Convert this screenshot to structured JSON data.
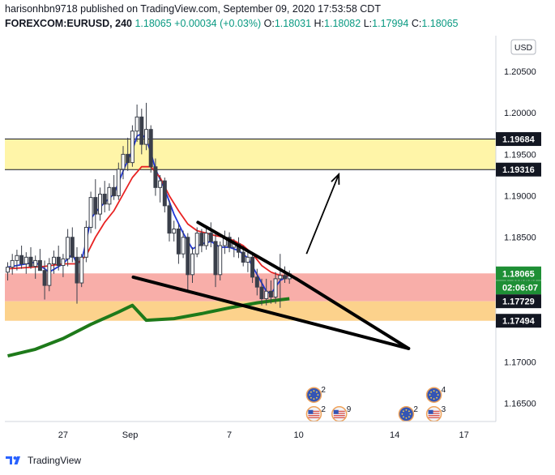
{
  "header": {
    "line1": "harisonhbn9718 published on TradingView.com, September 09, 2020 17:53:58 CDT",
    "symbol": "FOREXCOM:EURUSD, 240",
    "last": "1.18065",
    "change": "+0.00034 (+0.03%)",
    "o_label": "O:",
    "o_value": "1.18031",
    "h_label": "H:",
    "h_value": "1.18082",
    "l_label": "L:",
    "l_value": "1.17994",
    "c_label": "C:",
    "c_value": "1.18065"
  },
  "footer": {
    "brand": "TradingView"
  },
  "colors": {
    "up": "#26a69a",
    "down": "#ef5350",
    "candle": "#3a3f4a",
    "ema_fast": "#2036d9",
    "ema_mid": "#e82222",
    "ema_slow": "#1e7a1a",
    "zone_yellow": "#fff5a8",
    "zone_pink": "#f8aea9",
    "zone_orange": "#fcd28c",
    "accent_green": "#1e8f35",
    "label_dark": "#131722"
  },
  "chart_data": {
    "type": "candlestick",
    "currency": "USD",
    "x_ticks": [
      "27",
      "Sep",
      "7",
      "10",
      "14",
      "17"
    ],
    "y_ticks": [
      "1.20500",
      "1.20000",
      "1.19500",
      "1.19000",
      "1.18500",
      "1.18000",
      "1.17500",
      "1.17000",
      "1.16500"
    ],
    "ylim": [
      1.1628,
      1.2093
    ],
    "price_labels": [
      {
        "text": "1.19684",
        "value": 1.19684,
        "style": "dark"
      },
      {
        "text": "1.19316",
        "value": 1.19316,
        "style": "dark"
      },
      {
        "text": "1.18065",
        "value": 1.18065,
        "style": "green"
      },
      {
        "text": "02:06:07",
        "value": 1.17895,
        "style": "green"
      },
      {
        "text": "1.17729",
        "value": 1.17729,
        "style": "dark"
      },
      {
        "text": "1.17494",
        "value": 1.17494,
        "style": "dark"
      }
    ],
    "zones": [
      {
        "name": "resistance",
        "top": 1.19684,
        "bottom": 1.19316,
        "color": "#fff5a8"
      },
      {
        "name": "support-pink",
        "top": 1.18065,
        "bottom": 1.17729,
        "color": "#f8aea9"
      },
      {
        "name": "support-orange",
        "top": 1.17729,
        "bottom": 1.17494,
        "color": "#fcd28c"
      }
    ],
    "candles": [
      [
        1.1808,
        1.182,
        1.1798,
        1.1814
      ],
      [
        1.1814,
        1.183,
        1.1805,
        1.1822
      ],
      [
        1.1822,
        1.1835,
        1.181,
        1.1828
      ],
      [
        1.1828,
        1.184,
        1.1812,
        1.1818
      ],
      [
        1.1818,
        1.1832,
        1.1806,
        1.1826
      ],
      [
        1.1826,
        1.1838,
        1.1812,
        1.1815
      ],
      [
        1.1815,
        1.1828,
        1.18,
        1.1822
      ],
      [
        1.1822,
        1.1836,
        1.1812,
        1.181
      ],
      [
        1.181,
        1.1822,
        1.1775,
        1.1792
      ],
      [
        1.1792,
        1.1825,
        1.1785,
        1.1818
      ],
      [
        1.1818,
        1.1834,
        1.1806,
        1.1826
      ],
      [
        1.1826,
        1.184,
        1.181,
        1.1816
      ],
      [
        1.1816,
        1.183,
        1.1802,
        1.1824
      ],
      [
        1.1824,
        1.186,
        1.1815,
        1.185
      ],
      [
        1.185,
        1.1862,
        1.182,
        1.1826
      ],
      [
        1.1826,
        1.1838,
        1.177,
        1.1795
      ],
      [
        1.1795,
        1.183,
        1.179,
        1.1826
      ],
      [
        1.1826,
        1.187,
        1.182,
        1.1862
      ],
      [
        1.1862,
        1.1905,
        1.1855,
        1.1898
      ],
      [
        1.1898,
        1.192,
        1.186,
        1.1878
      ],
      [
        1.1878,
        1.191,
        1.187,
        1.1902
      ],
      [
        1.1902,
        1.1918,
        1.188,
        1.189
      ],
      [
        1.189,
        1.1915,
        1.1882,
        1.191
      ],
      [
        1.191,
        1.1925,
        1.1895,
        1.19
      ],
      [
        1.19,
        1.194,
        1.1895,
        1.1932
      ],
      [
        1.1932,
        1.196,
        1.192,
        1.195
      ],
      [
        1.195,
        1.197,
        1.193,
        1.194
      ],
      [
        1.194,
        1.1985,
        1.1935,
        1.1978
      ],
      [
        1.1978,
        1.201,
        1.1965,
        1.1995
      ],
      [
        1.1995,
        1.2005,
        1.195,
        1.1962
      ],
      [
        1.1962,
        1.2012,
        1.1955,
        1.198
      ],
      [
        1.198,
        1.1985,
        1.1928,
        1.1935
      ],
      [
        1.1935,
        1.1945,
        1.19,
        1.191
      ],
      [
        1.191,
        1.1925,
        1.1892,
        1.1918
      ],
      [
        1.1918,
        1.1922,
        1.188,
        1.1888
      ],
      [
        1.1888,
        1.1895,
        1.1845,
        1.1855
      ],
      [
        1.1855,
        1.187,
        1.1845,
        1.186
      ],
      [
        1.186,
        1.1866,
        1.1818,
        1.183
      ],
      [
        1.183,
        1.1858,
        1.1825,
        1.185
      ],
      [
        1.185,
        1.1855,
        1.1785,
        1.1805
      ],
      [
        1.1805,
        1.1838,
        1.1795,
        1.183
      ],
      [
        1.183,
        1.1862,
        1.1826,
        1.1855
      ],
      [
        1.1855,
        1.186,
        1.1832,
        1.184
      ],
      [
        1.184,
        1.1862,
        1.1835,
        1.1855
      ],
      [
        1.1855,
        1.1868,
        1.1838,
        1.1845
      ],
      [
        1.1845,
        1.1855,
        1.179,
        1.1805
      ],
      [
        1.1805,
        1.1845,
        1.1798,
        1.184
      ],
      [
        1.184,
        1.1858,
        1.183,
        1.185
      ],
      [
        1.185,
        1.1856,
        1.1832,
        1.1838
      ],
      [
        1.1838,
        1.1848,
        1.1826,
        1.1842
      ],
      [
        1.1842,
        1.185,
        1.1825,
        1.1832
      ],
      [
        1.1832,
        1.184,
        1.1815,
        1.182
      ],
      [
        1.182,
        1.1832,
        1.1808,
        1.1826
      ],
      [
        1.1826,
        1.183,
        1.1795,
        1.1802
      ],
      [
        1.1802,
        1.1812,
        1.178,
        1.179
      ],
      [
        1.179,
        1.18,
        1.1768,
        1.1776
      ],
      [
        1.1776,
        1.18,
        1.1768,
        1.1785
      ],
      [
        1.1785,
        1.1798,
        1.177,
        1.1778
      ],
      [
        1.1778,
        1.1808,
        1.177,
        1.18
      ],
      [
        1.18,
        1.183,
        1.1765,
        1.1804
      ],
      [
        1.1804,
        1.1815,
        1.1795,
        1.18
      ],
      [
        1.18,
        1.181,
        1.1794,
        1.1806
      ]
    ],
    "series": [
      {
        "type": "line",
        "values": [
          [
            0,
            1.1814
          ],
          [
            6,
            1.182
          ],
          [
            9,
            1.1808
          ],
          [
            12,
            1.1818
          ],
          [
            14,
            1.183
          ],
          [
            15,
            1.1818
          ],
          [
            16,
            1.1822
          ],
          [
            17,
            1.1845
          ],
          [
            18,
            1.1872
          ],
          [
            19,
            1.188
          ],
          [
            21,
            1.1892
          ],
          [
            23,
            1.1902
          ],
          [
            25,
            1.193
          ],
          [
            27,
            1.1955
          ],
          [
            28,
            1.1972
          ],
          [
            29,
            1.1975
          ],
          [
            30,
            1.1968
          ],
          [
            31,
            1.1952
          ],
          [
            32,
            1.1932
          ],
          [
            34,
            1.1908
          ],
          [
            36,
            1.1878
          ],
          [
            38,
            1.1855
          ],
          [
            40,
            1.1836
          ],
          [
            42,
            1.1842
          ],
          [
            44,
            1.1845
          ],
          [
            46,
            1.1838
          ],
          [
            48,
            1.1838
          ],
          [
            50,
            1.1834
          ],
          [
            52,
            1.1825
          ],
          [
            54,
            1.1805
          ],
          [
            55,
            1.1795
          ],
          [
            56,
            1.1785
          ],
          [
            57,
            1.1782
          ],
          [
            58,
            1.179
          ],
          [
            59,
            1.1798
          ],
          [
            61,
            1.1804
          ]
        ]
      },
      {
        "type": "line",
        "values": [
          [
            0,
            1.1812
          ],
          [
            8,
            1.1815
          ],
          [
            12,
            1.1818
          ],
          [
            15,
            1.1818
          ],
          [
            17,
            1.1828
          ],
          [
            19,
            1.185
          ],
          [
            21,
            1.1868
          ],
          [
            23,
            1.1882
          ],
          [
            25,
            1.1902
          ],
          [
            27,
            1.1922
          ],
          [
            29,
            1.1935
          ],
          [
            31,
            1.1935
          ],
          [
            33,
            1.1922
          ],
          [
            35,
            1.19
          ],
          [
            37,
            1.1882
          ],
          [
            39,
            1.1866
          ],
          [
            41,
            1.1858
          ],
          [
            43,
            1.1855
          ],
          [
            45,
            1.1852
          ],
          [
            47,
            1.185
          ],
          [
            49,
            1.1846
          ],
          [
            51,
            1.184
          ],
          [
            53,
            1.183
          ],
          [
            55,
            1.1816
          ],
          [
            57,
            1.1808
          ],
          [
            59,
            1.1804
          ],
          [
            61,
            1.1803
          ]
        ]
      },
      {
        "type": "line",
        "values": [
          [
            0,
            1.1707
          ],
          [
            6,
            1.1715
          ],
          [
            12,
            1.1728
          ],
          [
            18,
            1.1745
          ],
          [
            24,
            1.176
          ],
          [
            27,
            1.1768
          ],
          [
            30,
            1.175
          ],
          [
            36,
            1.1752
          ],
          [
            42,
            1.1758
          ],
          [
            48,
            1.1765
          ],
          [
            54,
            1.1771
          ],
          [
            58,
            1.1774
          ],
          [
            61,
            1.1776
          ]
        ]
      }
    ],
    "annotations": [
      {
        "type": "trendline",
        "from": [
          41.2,
          1.1868
        ],
        "to": [
          62.5,
          1.18
        ]
      },
      {
        "type": "trendline",
        "from": [
          62.5,
          1.18
        ],
        "to": [
          86.8,
          1.1716
        ]
      },
      {
        "type": "trendline",
        "from": [
          27.2,
          1.1802
        ],
        "to": [
          86.8,
          1.1716
        ]
      },
      {
        "type": "arrow",
        "from": [
          64.7,
          1.183
        ],
        "to": [
          71.7,
          1.1926
        ]
      }
    ],
    "events": [
      {
        "label": "2",
        "x": 66.3,
        "value": 1.166,
        "flag": "eu"
      },
      {
        "label": "2",
        "x": 66.3,
        "value": 1.1637,
        "flag": "us"
      },
      {
        "label": "9",
        "x": 71.8,
        "value": 1.1637,
        "flag": "us"
      },
      {
        "label": "2",
        "x": 86.3,
        "value": 1.1637,
        "flag": "eu"
      },
      {
        "label": "4",
        "x": 92.3,
        "value": 1.166,
        "flag": "eu"
      },
      {
        "label": "3",
        "x": 92.3,
        "value": 1.1637,
        "flag": "us"
      }
    ]
  }
}
